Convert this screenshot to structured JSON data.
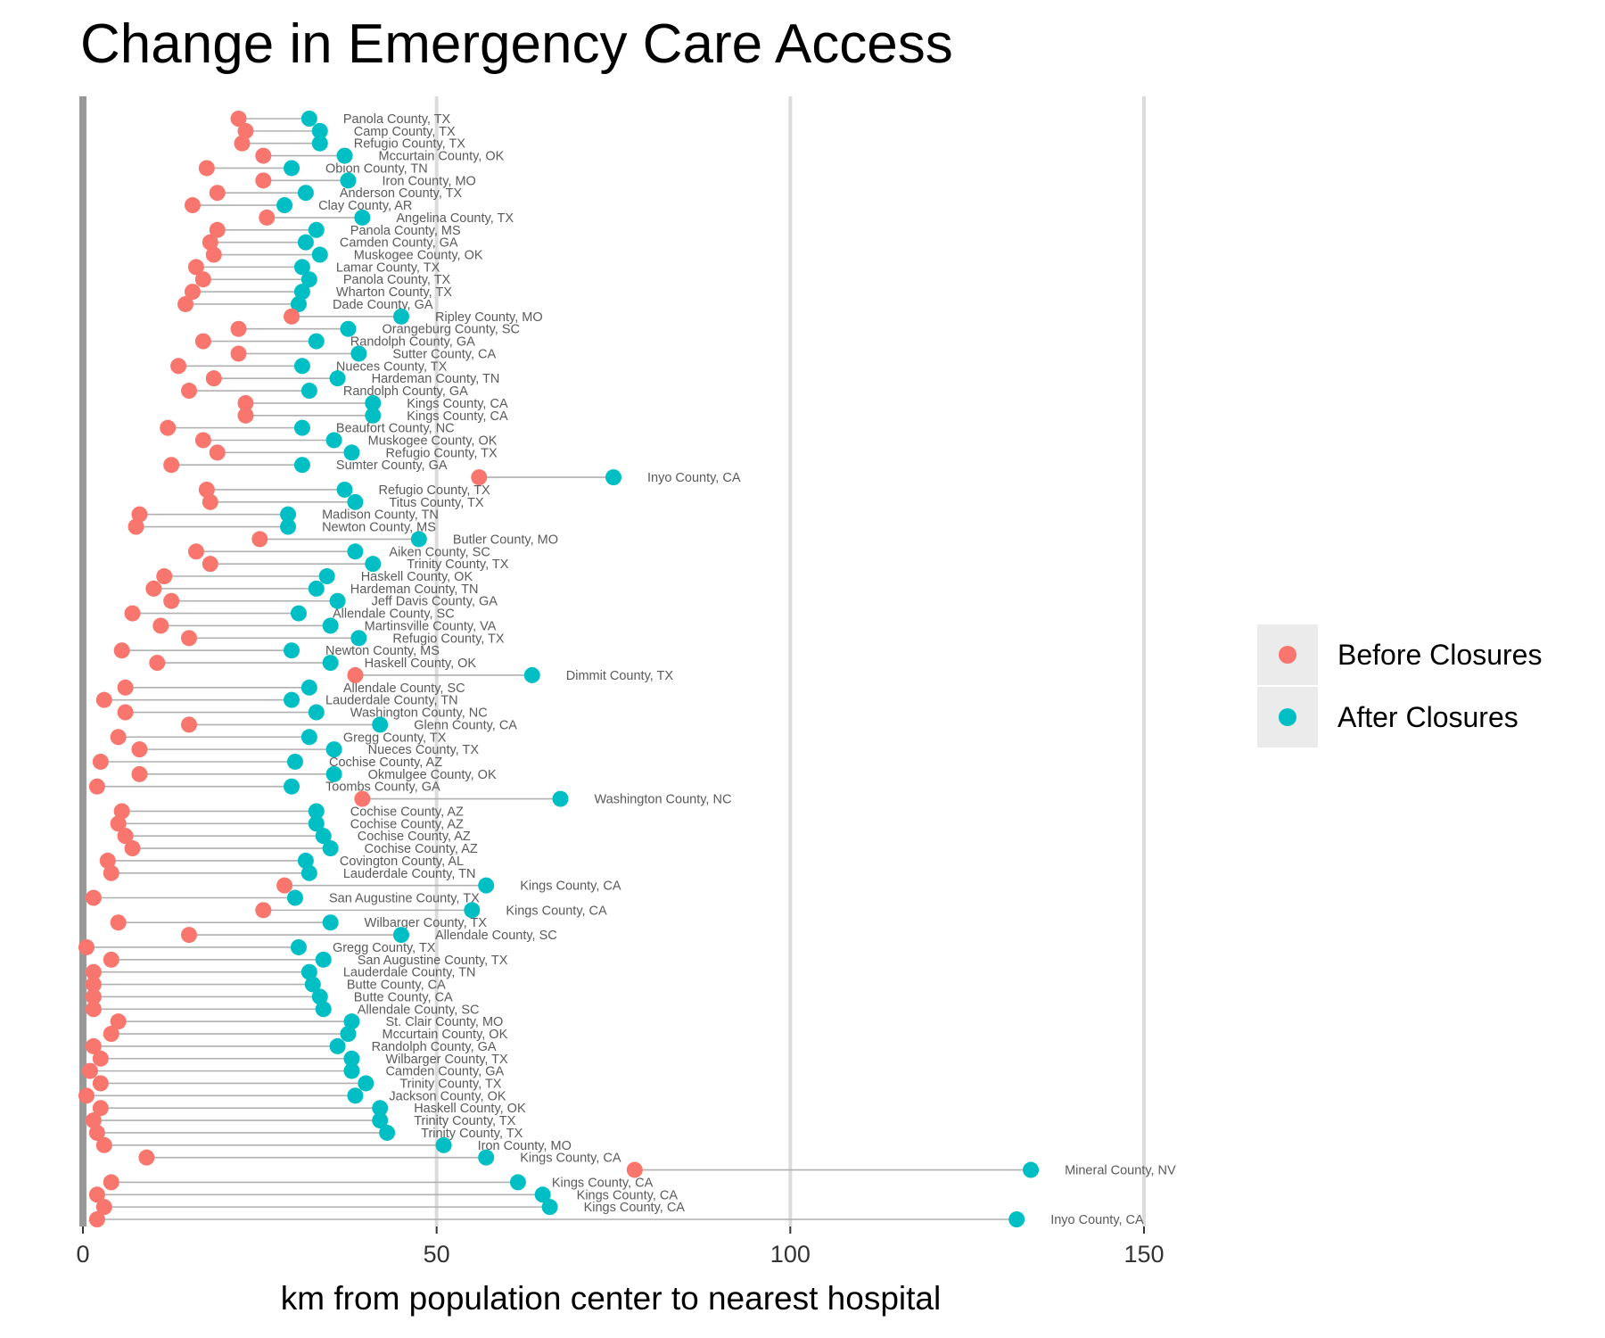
{
  "chart_data": {
    "type": "dumbbell",
    "title": "Change in Emergency Care Access",
    "xlabel": "km from population center to nearest hospital",
    "ylabel": "",
    "xlim": [
      0,
      160
    ],
    "xticks": [
      0,
      50,
      100,
      150
    ],
    "xtick_labels": [
      "0",
      "50",
      "100",
      "150"
    ],
    "grid": "vertical major gridlines",
    "legend": {
      "position": "right",
      "entries": [
        {
          "label": "Before Closures",
          "color": "#F8766D"
        },
        {
          "label": "After Closures",
          "color": "#00BFC4"
        }
      ]
    },
    "colors": {
      "before": "#F8766D",
      "after": "#00BFC4",
      "segment": "#b0b0b0",
      "zero_line": "#999999",
      "grid": "#dcdcdc"
    },
    "rows": [
      {
        "label": "Panola County, TX",
        "before": 22,
        "after": 32
      },
      {
        "label": "Camp County, TX",
        "before": 23,
        "after": 33.5
      },
      {
        "label": "Refugio County, TX",
        "before": 22.5,
        "after": 33.5
      },
      {
        "label": "Mccurtain County, OK",
        "before": 25.5,
        "after": 37
      },
      {
        "label": "Obion County, TN",
        "before": 17.5,
        "after": 29.5
      },
      {
        "label": "Iron County, MO",
        "before": 25.5,
        "after": 37.5
      },
      {
        "label": "Anderson County, TX",
        "before": 19,
        "after": 31.5
      },
      {
        "label": "Clay County, AR",
        "before": 15.5,
        "after": 28.5
      },
      {
        "label": "Angelina County, TX",
        "before": 26,
        "after": 39.5
      },
      {
        "label": "Panola County, MS",
        "before": 19,
        "after": 33
      },
      {
        "label": "Camden County, GA",
        "before": 18,
        "after": 31.5
      },
      {
        "label": "Muskogee County, OK",
        "before": 18.5,
        "after": 33.5
      },
      {
        "label": "Lamar County, TX",
        "before": 16,
        "after": 31
      },
      {
        "label": "Panola County, TX",
        "before": 17,
        "after": 32
      },
      {
        "label": "Wharton County, TX",
        "before": 15.5,
        "after": 31
      },
      {
        "label": "Dade County, GA",
        "before": 14.5,
        "after": 30.5
      },
      {
        "label": "Ripley County, MO",
        "before": 29.5,
        "after": 45
      },
      {
        "label": "Orangeburg County, SC",
        "before": 22,
        "after": 37.5
      },
      {
        "label": "Randolph County, GA",
        "before": 17,
        "after": 33
      },
      {
        "label": "Sutter County, CA",
        "before": 22,
        "after": 39
      },
      {
        "label": "Nueces County, TX",
        "before": 13.5,
        "after": 31
      },
      {
        "label": "Hardeman County, TN",
        "before": 18.5,
        "after": 36
      },
      {
        "label": "Randolph County, GA",
        "before": 15,
        "after": 32
      },
      {
        "label": "Kings County, CA",
        "before": 23,
        "after": 41
      },
      {
        "label": "Kings County, CA",
        "before": 23,
        "after": 41
      },
      {
        "label": "Beaufort County, NC",
        "before": 12,
        "after": 31
      },
      {
        "label": "Muskogee County, OK",
        "before": 17,
        "after": 35.5
      },
      {
        "label": "Refugio County, TX",
        "before": 19,
        "after": 38
      },
      {
        "label": "Sumter County, GA",
        "before": 12.5,
        "after": 31
      },
      {
        "label": "Inyo County, CA",
        "before": 56,
        "after": 75
      },
      {
        "label": "Refugio County, TX",
        "before": 17.5,
        "after": 37
      },
      {
        "label": "Titus County, TX",
        "before": 18,
        "after": 38.5
      },
      {
        "label": "Madison County, TN",
        "before": 8,
        "after": 29
      },
      {
        "label": "Newton County, MS",
        "before": 7.5,
        "after": 29
      },
      {
        "label": "Butler County, MO",
        "before": 25,
        "after": 47.5
      },
      {
        "label": "Aiken County, SC",
        "before": 16,
        "after": 38.5
      },
      {
        "label": "Trinity County, TX",
        "before": 18,
        "after": 41
      },
      {
        "label": "Haskell County, OK",
        "before": 11.5,
        "after": 34.5
      },
      {
        "label": "Hardeman County, TN",
        "before": 10,
        "after": 33
      },
      {
        "label": "Jeff Davis County, GA",
        "before": 12.5,
        "after": 36
      },
      {
        "label": "Allendale County, SC",
        "before": 7,
        "after": 30.5
      },
      {
        "label": "Martinsville County, VA",
        "before": 11,
        "after": 35
      },
      {
        "label": "Refugio County, TX",
        "before": 15,
        "after": 39
      },
      {
        "label": "Newton County, MS",
        "before": 5.5,
        "after": 29.5
      },
      {
        "label": "Haskell County, OK",
        "before": 10.5,
        "after": 35
      },
      {
        "label": "Dimmit County, TX",
        "before": 38.5,
        "after": 63.5
      },
      {
        "label": "Allendale County, SC",
        "before": 6,
        "after": 32
      },
      {
        "label": "Lauderdale County, TN",
        "before": 3,
        "after": 29.5
      },
      {
        "label": "Washington County, NC",
        "before": 6,
        "after": 33
      },
      {
        "label": "Glenn County, CA",
        "before": 15,
        "after": 42
      },
      {
        "label": "Gregg County, TX",
        "before": 5,
        "after": 32
      },
      {
        "label": "Nueces County, TX",
        "before": 8,
        "after": 35.5
      },
      {
        "label": "Cochise County, AZ",
        "before": 2.5,
        "after": 30
      },
      {
        "label": "Okmulgee County, OK",
        "before": 8,
        "after": 35.5
      },
      {
        "label": "Toombs County, GA",
        "before": 2,
        "after": 29.5
      },
      {
        "label": "Washington County, NC",
        "before": 39.5,
        "after": 67.5
      },
      {
        "label": "Cochise County, AZ",
        "before": 5.5,
        "after": 33
      },
      {
        "label": "Cochise County, AZ",
        "before": 5,
        "after": 33
      },
      {
        "label": "Cochise County, AZ",
        "before": 6,
        "after": 34
      },
      {
        "label": "Cochise County, AZ",
        "before": 7,
        "after": 35
      },
      {
        "label": "Covington County, AL",
        "before": 3.5,
        "after": 31.5
      },
      {
        "label": "Lauderdale County, TN",
        "before": 4,
        "after": 32
      },
      {
        "label": "Kings County, CA",
        "before": 28.5,
        "after": 57
      },
      {
        "label": "San Augustine County, TX",
        "before": 1.5,
        "after": 30
      },
      {
        "label": "Kings County, CA",
        "before": 25.5,
        "after": 55
      },
      {
        "label": "Wilbarger County, TX",
        "before": 5,
        "after": 35
      },
      {
        "label": "Allendale County, SC",
        "before": 15,
        "after": 45
      },
      {
        "label": "Gregg County, TX",
        "before": 0.5,
        "after": 30.5
      },
      {
        "label": "San Augustine County, TX",
        "before": 4,
        "after": 34
      },
      {
        "label": "Lauderdale County, TN",
        "before": 1.5,
        "after": 32
      },
      {
        "label": "Butte County, CA",
        "before": 1.5,
        "after": 32.5
      },
      {
        "label": "Butte County, CA",
        "before": 1.5,
        "after": 33.5
      },
      {
        "label": "Allendale County, SC",
        "before": 1.5,
        "after": 34
      },
      {
        "label": "St. Clair County, MO",
        "before": 5,
        "after": 38
      },
      {
        "label": "Mccurtain County, OK",
        "before": 4,
        "after": 37.5
      },
      {
        "label": "Randolph County, GA",
        "before": 1.5,
        "after": 36
      },
      {
        "label": "Wilbarger County, TX",
        "before": 2.5,
        "after": 38
      },
      {
        "label": "Camden County, GA",
        "before": 1,
        "after": 38
      },
      {
        "label": "Trinity County, TX",
        "before": 2.5,
        "after": 40
      },
      {
        "label": "Jackson County, OK",
        "before": 0.5,
        "after": 38.5
      },
      {
        "label": "Haskell County, OK",
        "before": 2.5,
        "after": 42
      },
      {
        "label": "Trinity County, TX",
        "before": 1.5,
        "after": 42
      },
      {
        "label": "Trinity County, TX",
        "before": 2,
        "after": 43
      },
      {
        "label": "Iron County, MO",
        "before": 3,
        "after": 51
      },
      {
        "label": "Kings County, CA",
        "before": 9,
        "after": 57
      },
      {
        "label": "Mineral County, NV",
        "before": 78,
        "after": 134
      },
      {
        "label": "Kings County, CA",
        "before": 4,
        "after": 61.5
      },
      {
        "label": "Kings County, CA",
        "before": 2,
        "after": 65
      },
      {
        "label": "Kings County, CA",
        "before": 3,
        "after": 66
      },
      {
        "label": "Inyo County, CA",
        "before": 2,
        "after": 132
      }
    ]
  }
}
